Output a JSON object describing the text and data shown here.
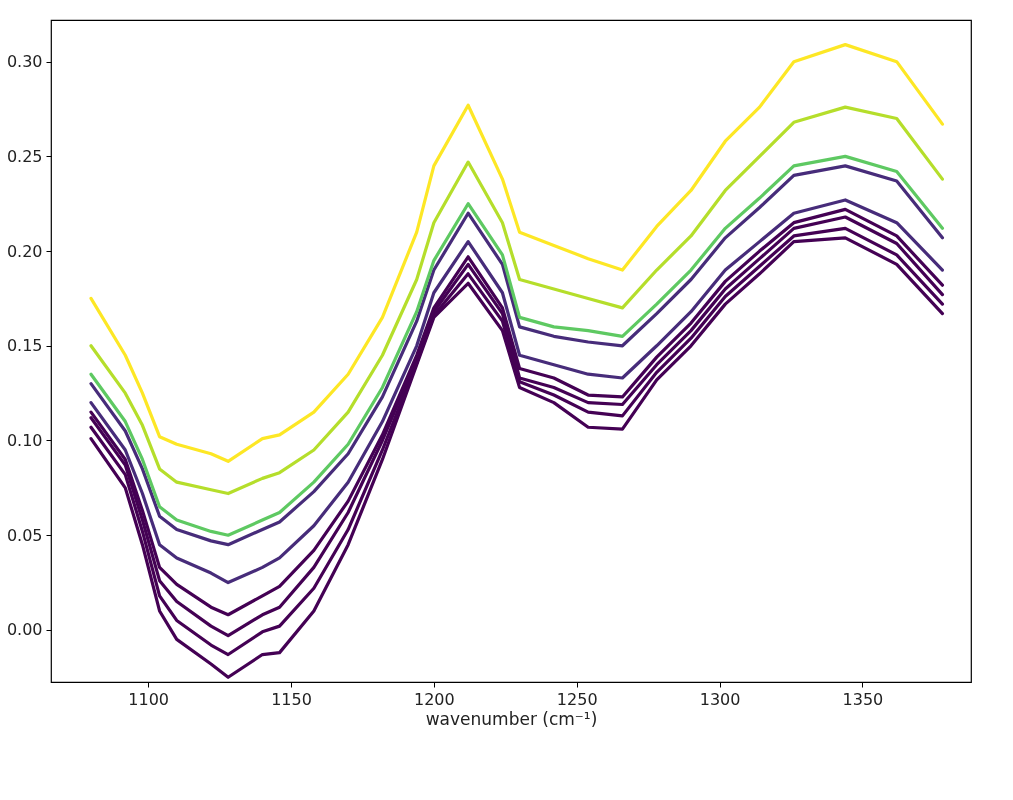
{
  "chart_data": {
    "type": "line",
    "xlabel": "wavenumber (cm⁻¹)",
    "x": [
      1080,
      1092,
      1098,
      1104,
      1110,
      1122,
      1128,
      1140,
      1146,
      1158,
      1170,
      1182,
      1194,
      1200,
      1212,
      1224,
      1230,
      1242,
      1254,
      1266,
      1278,
      1290,
      1302,
      1314,
      1326,
      1344,
      1362,
      1378
    ],
    "series": [
      {
        "color": "#440154",
        "values": [
          0.101,
          0.075,
          0.045,
          0.01,
          -0.005,
          -0.018,
          -0.025,
          -0.013,
          -0.012,
          0.01,
          0.045,
          0.09,
          0.14,
          0.165,
          0.183,
          0.158,
          0.128,
          0.12,
          0.107,
          0.106,
          0.132,
          0.15,
          0.172,
          0.188,
          0.205,
          0.207,
          0.193,
          0.167
        ]
      },
      {
        "color": "#440154",
        "values": [
          0.107,
          0.082,
          0.052,
          0.018,
          0.005,
          -0.008,
          -0.013,
          -0.001,
          0.002,
          0.022,
          0.053,
          0.095,
          0.141,
          0.166,
          0.188,
          0.163,
          0.131,
          0.124,
          0.115,
          0.113,
          0.136,
          0.154,
          0.176,
          0.192,
          0.208,
          0.212,
          0.198,
          0.172
        ]
      },
      {
        "color": "#440154",
        "values": [
          0.112,
          0.087,
          0.058,
          0.026,
          0.015,
          0.002,
          -0.003,
          0.008,
          0.012,
          0.033,
          0.062,
          0.1,
          0.143,
          0.168,
          0.193,
          0.167,
          0.133,
          0.128,
          0.12,
          0.119,
          0.14,
          0.158,
          0.18,
          0.196,
          0.212,
          0.218,
          0.204,
          0.177
        ]
      },
      {
        "color": "#440154",
        "values": [
          0.115,
          0.09,
          0.063,
          0.033,
          0.024,
          0.012,
          0.008,
          0.018,
          0.023,
          0.042,
          0.068,
          0.103,
          0.145,
          0.17,
          0.197,
          0.17,
          0.138,
          0.133,
          0.124,
          0.123,
          0.144,
          0.162,
          0.184,
          0.2,
          0.215,
          0.222,
          0.208,
          0.182
        ]
      },
      {
        "color": "#472c7a",
        "values": [
          0.12,
          0.095,
          0.072,
          0.045,
          0.038,
          0.03,
          0.025,
          0.033,
          0.038,
          0.055,
          0.078,
          0.11,
          0.15,
          0.178,
          0.205,
          0.178,
          0.145,
          0.14,
          0.135,
          0.133,
          0.15,
          0.168,
          0.19,
          0.205,
          0.22,
          0.227,
          0.215,
          0.19
        ]
      },
      {
        "color": "#472c7a",
        "values": [
          0.13,
          0.105,
          0.085,
          0.06,
          0.053,
          0.047,
          0.045,
          0.053,
          0.057,
          0.073,
          0.093,
          0.123,
          0.163,
          0.19,
          0.22,
          0.193,
          0.16,
          0.155,
          0.152,
          0.15,
          0.167,
          0.185,
          0.207,
          0.223,
          0.24,
          0.245,
          0.237,
          0.207
        ]
      },
      {
        "color": "#5ec962",
        "values": [
          0.135,
          0.11,
          0.09,
          0.065,
          0.058,
          0.052,
          0.05,
          0.058,
          0.062,
          0.078,
          0.098,
          0.128,
          0.168,
          0.195,
          0.225,
          0.198,
          0.165,
          0.16,
          0.158,
          0.155,
          0.172,
          0.19,
          0.212,
          0.228,
          0.245,
          0.25,
          0.242,
          0.212
        ]
      },
      {
        "color": "#b5de2b",
        "values": [
          0.15,
          0.125,
          0.108,
          0.085,
          0.078,
          0.074,
          0.072,
          0.08,
          0.083,
          0.095,
          0.115,
          0.145,
          0.185,
          0.215,
          0.247,
          0.215,
          0.185,
          0.18,
          0.175,
          0.17,
          0.19,
          0.208,
          0.232,
          0.25,
          0.268,
          0.276,
          0.27,
          0.238
        ]
      },
      {
        "color": "#fde725",
        "values": [
          0.175,
          0.145,
          0.125,
          0.102,
          0.098,
          0.093,
          0.089,
          0.101,
          0.103,
          0.115,
          0.135,
          0.165,
          0.21,
          0.245,
          0.277,
          0.238,
          0.21,
          0.203,
          0.196,
          0.19,
          0.213,
          0.232,
          0.258,
          0.276,
          0.3,
          0.309,
          0.3,
          0.267
        ]
      }
    ],
    "xlim": [
      1066,
      1388
    ],
    "ylim": [
      -0.0275,
      0.322
    ],
    "xticks": [
      1100,
      1150,
      1200,
      1250,
      1300,
      1350
    ],
    "yticks": [
      {
        "value": 0,
        "label": "0.00"
      },
      {
        "value": 0.05,
        "label": "0.05"
      },
      {
        "value": 0.1,
        "label": "0.10"
      },
      {
        "value": 0.15,
        "label": "0.15"
      },
      {
        "value": 0.2,
        "label": "0.20"
      },
      {
        "value": 0.25,
        "label": "0.25"
      },
      {
        "value": 0.3,
        "label": "0.30"
      }
    ],
    "grid": false,
    "legend": false,
    "marker": "none",
    "line_style": "solid"
  }
}
